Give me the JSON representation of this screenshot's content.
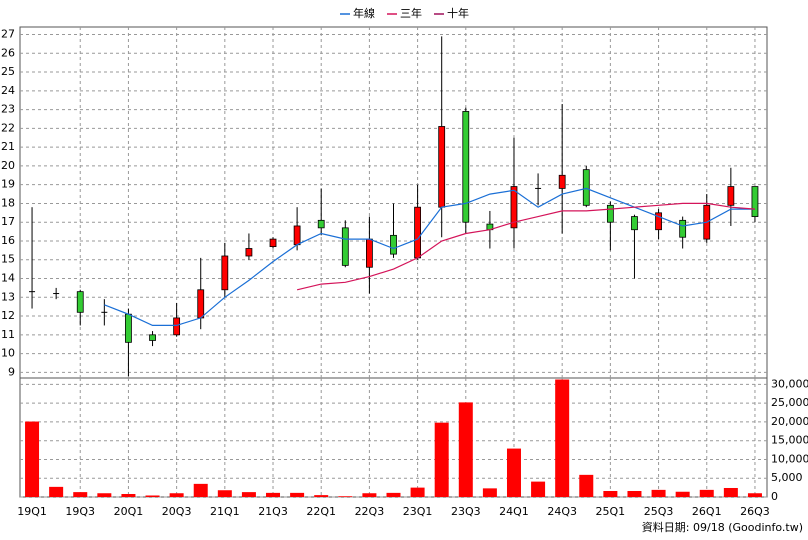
{
  "chart_data": {
    "type": "candlestick",
    "categories": [
      "19Q1",
      null,
      "19Q3",
      null,
      "20Q1",
      null,
      "20Q3",
      null,
      "21Q1",
      null,
      "21Q3",
      null,
      "22Q1",
      null,
      "22Q3",
      null,
      "23Q1",
      null,
      "23Q3",
      null,
      "24Q1",
      null,
      "24Q3",
      null,
      "25Q1",
      null,
      "25Q3",
      null,
      "26Q1",
      null,
      "26Q3"
    ],
    "open": [
      13.3,
      13.2,
      13.3,
      12.2,
      12.1,
      11.0,
      11.0,
      11.9,
      13.4,
      15.2,
      15.7,
      15.8,
      17.1,
      16.7,
      14.6,
      16.3,
      15.1,
      17.8,
      22.9,
      16.9,
      16.7,
      18.8,
      18.8,
      19.8,
      17.9,
      17.3,
      16.6,
      17.1,
      16.1,
      17.9,
      18.9
    ],
    "high": [
      17.8,
      13.5,
      13.4,
      12.9,
      12.4,
      11.2,
      12.7,
      15.1,
      15.9,
      16.4,
      16.2,
      17.8,
      18.8,
      17.1,
      17.3,
      18.0,
      19.0,
      26.9,
      23.1,
      17.6,
      21.5,
      19.6,
      23.3,
      20.0,
      18.1,
      17.4,
      17.7,
      17.3,
      18.5,
      19.9,
      18.9
    ],
    "low": [
      12.4,
      12.9,
      11.5,
      11.5,
      8.8,
      10.4,
      10.9,
      11.3,
      13.0,
      15.0,
      15.6,
      15.5,
      16.3,
      14.6,
      13.2,
      15.1,
      15.0,
      16.2,
      16.4,
      15.6,
      15.6,
      17.9,
      16.4,
      17.8,
      15.5,
      14.0,
      16.1,
      15.6,
      15.9,
      16.8,
      17.0
    ],
    "close": [
      13.3,
      13.2,
      12.2,
      12.2,
      10.6,
      10.7,
      11.9,
      13.4,
      15.2,
      15.6,
      16.1,
      16.8,
      16.7,
      14.7,
      16.1,
      15.3,
      17.8,
      22.1,
      17.0,
      16.6,
      18.9,
      18.8,
      19.5,
      17.9,
      17.0,
      16.6,
      17.5,
      16.2,
      17.9,
      18.9,
      17.3
    ],
    "up_color": "#ff0000",
    "down_color": "#33cc33",
    "ylim": [
      8.7,
      27.4
    ],
    "yticks": [
      9,
      10,
      11,
      12,
      13,
      14,
      15,
      16,
      17,
      18,
      19,
      20,
      21,
      22,
      23,
      24,
      25,
      26,
      27
    ],
    "grid": true,
    "series": [
      {
        "name": "年線",
        "color": "#1a6fd6",
        "values": [
          null,
          null,
          null,
          12.6,
          12.1,
          11.5,
          11.5,
          11.9,
          13.0,
          13.9,
          14.9,
          15.8,
          16.4,
          16.1,
          16.1,
          15.6,
          16.1,
          17.8,
          18.0,
          18.5,
          18.7,
          17.8,
          18.5,
          18.8,
          18.3,
          17.8,
          17.3,
          16.8,
          17.0,
          17.7,
          17.7
        ]
      },
      {
        "name": "三年",
        "color": "#d4145a",
        "values": [
          null,
          null,
          null,
          null,
          null,
          null,
          null,
          null,
          null,
          null,
          null,
          13.4,
          13.7,
          13.8,
          14.1,
          14.5,
          15.1,
          16.0,
          16.4,
          16.6,
          17.0,
          17.3,
          17.6,
          17.6,
          17.7,
          17.8,
          17.9,
          18.0,
          18.0,
          17.8,
          17.7
        ]
      },
      {
        "name": "十年",
        "color": "#a0105a",
        "values": [
          null,
          null,
          null,
          null,
          null,
          null,
          null,
          null,
          null,
          null,
          null,
          null,
          null,
          null,
          null,
          null,
          null,
          null,
          null,
          null,
          null,
          null,
          null,
          null,
          null,
          null,
          null,
          null,
          null,
          null,
          null
        ]
      }
    ],
    "volume": {
      "type": "bar",
      "color": "#ff0000",
      "values": [
        20100,
        2700,
        1300,
        1000,
        800,
        400,
        1000,
        3500,
        1800,
        1300,
        1100,
        1100,
        500,
        200,
        1000,
        1100,
        2500,
        19800,
        25200,
        2300,
        12900,
        4100,
        31300,
        5900,
        1600,
        1600,
        1900,
        1400,
        1900,
        2400,
        1000
      ],
      "ylim": [
        0,
        31700
      ],
      "yticks": [
        0,
        {
          "value": 5000,
          "label": "5,000"
        },
        {
          "value": 10000,
          "label": "10,000"
        },
        {
          "value": 15000,
          "label": "15,000"
        },
        {
          "value": 20000,
          "label": "20,000"
        },
        {
          "value": 25000,
          "label": "25,000"
        },
        {
          "value": 30000,
          "label": "30,000"
        }
      ]
    },
    "footer": "資料日期: 09/18 (Goodinfo.tw)"
  }
}
